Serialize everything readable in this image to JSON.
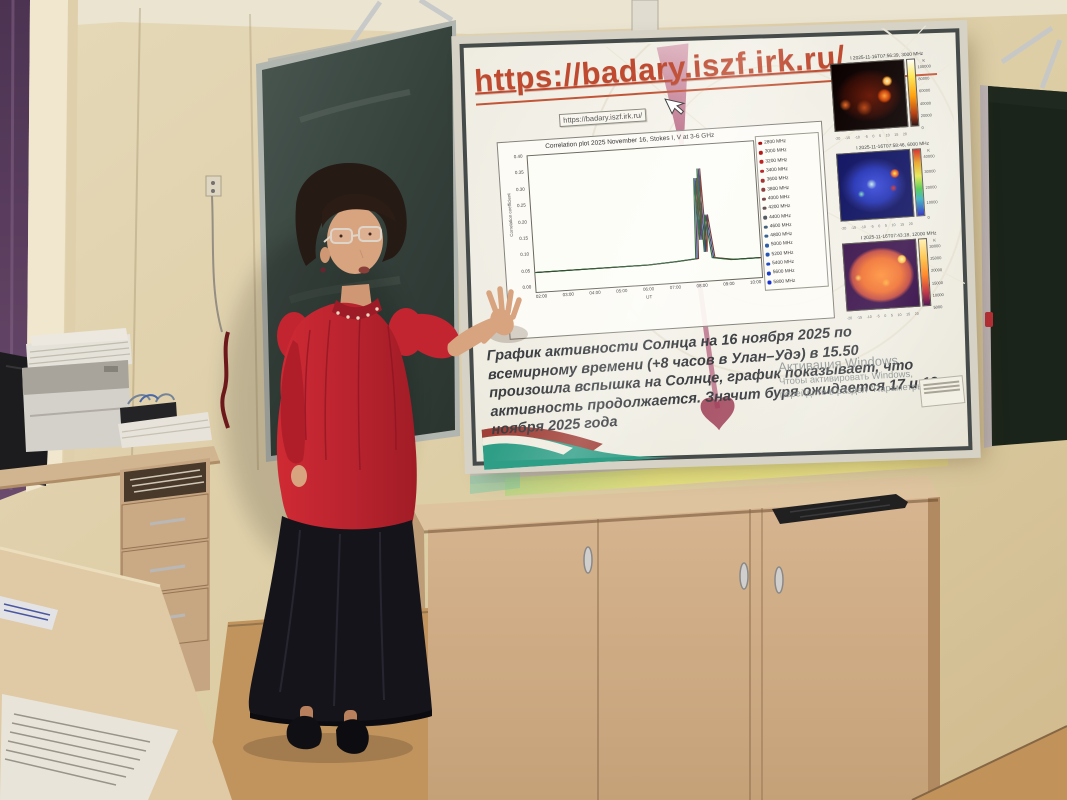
{
  "slide": {
    "title": "https://badary.iszf.irk.ru/",
    "tooltip_url": "https://badary.iszf.irk.ru/",
    "body_text": "График активности Солнца на 16 ноября 2025 по всемирному времени (+8 часов в Улан–Удэ) в 15.50 произошла вспышка на Солнце, график показывает, что активность продолжается. Значит буря ожидается 17 и 18 ноября 2025 года",
    "watermark": {
      "line1": "Активация Windows",
      "line2": "Чтобы активировать Windows,",
      "line3": "перейдите в раздел \"Параметры\"."
    }
  },
  "chart_data": {
    "type": "line",
    "title": "Correlation plot 2025 November 16, Stokes I, V at 3-6 GHz",
    "xlabel": "UT",
    "ylabel": "Correlation coefficient",
    "x_ticks": [
      "02:00",
      "03:00",
      "04:00",
      "05:00",
      "06:00",
      "07:00",
      "08:00",
      "09:00",
      "10:00"
    ],
    "y_ticks": [
      "0.40",
      "0.35",
      "0.30",
      "0.25",
      "0.20",
      "0.15",
      "0.10",
      "0.05",
      "0.00"
    ],
    "ylim": [
      0,
      0.4
    ],
    "grid": false,
    "legend_position": "right",
    "series": [
      {
        "name": "2800 MHz",
        "color": "#a40000"
      },
      {
        "name": "3000 MHz",
        "color": "#b40a0a"
      },
      {
        "name": "3200 MHz",
        "color": "#bc1616"
      },
      {
        "name": "3400 MHz",
        "color": "#b22222"
      },
      {
        "name": "3600 MHz",
        "color": "#a03030"
      },
      {
        "name": "3800 MHz",
        "color": "#8c3c3c"
      },
      {
        "name": "4000 MHz",
        "color": "#784848"
      },
      {
        "name": "4200 MHz",
        "color": "#645252"
      },
      {
        "name": "4400 MHz",
        "color": "#525a64"
      },
      {
        "name": "4600 MHz",
        "color": "#42607a"
      },
      {
        "name": "4800 MHz",
        "color": "#346090"
      },
      {
        "name": "5000 MHz",
        "color": "#2a5ca6"
      },
      {
        "name": "5200 MHz",
        "color": "#2254b6"
      },
      {
        "name": "5400 MHz",
        "color": "#1c48c2"
      },
      {
        "name": "5600 MHz",
        "color": "#163aca"
      },
      {
        "name": "5800 MHz",
        "color": "#102cd0"
      }
    ],
    "profile": {
      "x": [
        "02:00",
        "03:00",
        "04:00",
        "05:00",
        "06:00",
        "07:00",
        "07:45",
        "07:52",
        "07:56",
        "08:00",
        "08:04",
        "08:10",
        "08:20",
        "09:00",
        "10:00"
      ],
      "y": [
        0.05,
        0.05,
        0.05,
        0.05,
        0.05,
        0.055,
        0.06,
        0.32,
        0.12,
        0.35,
        0.08,
        0.2,
        0.06,
        0.05,
        0.05
      ]
    },
    "flare_time": "08:00"
  },
  "solar_images": [
    {
      "title": "I 2025-11-16T07:56:39, 3000 MHz",
      "frequency": "3000 MHz",
      "palette": "red",
      "cb_unit": "K",
      "cb_ticks": [
        "100000",
        "80000",
        "60000",
        "40000",
        "20000",
        "0"
      ],
      "axis_ticks": [
        "-20",
        "-15",
        "-10",
        "-5",
        "0",
        "5",
        "10",
        "15",
        "20"
      ]
    },
    {
      "title": "I 2025-11-16T07:58:46, 6000 MHz",
      "frequency": "6000 MHz",
      "palette": "blue",
      "cb_unit": "K",
      "cb_ticks": [
        "40000",
        "30000",
        "20000",
        "10000",
        "0"
      ],
      "axis_ticks": [
        "-20",
        "-15",
        "-10",
        "-5",
        "0",
        "5",
        "10",
        "15",
        "20"
      ]
    },
    {
      "title": "I 2025-11-16T07:43:18, 12000 MHz",
      "frequency": "12000 MHz",
      "palette": "orange",
      "cb_unit": "K",
      "cb_ticks": [
        "30000",
        "25000",
        "20000",
        "15000",
        "10000",
        "5000"
      ],
      "axis_ticks": [
        "-20",
        "-15",
        "-10",
        "-5",
        "0",
        "5",
        "10",
        "15",
        "20"
      ]
    }
  ],
  "colors": {
    "slide_accent": "#bf4a30",
    "left_board_green": "#32403b",
    "right_board_green": "#1a241b",
    "wall_beige": "#e7d8b2",
    "cabinet_wood": "#d8b48c",
    "blouse_red": "#b8232e",
    "skirt_black": "#15141a",
    "curtain_purple": "#5a3f60",
    "floor_tan": "#cb9c64",
    "tray_glow_yellow": "#eef07a"
  }
}
